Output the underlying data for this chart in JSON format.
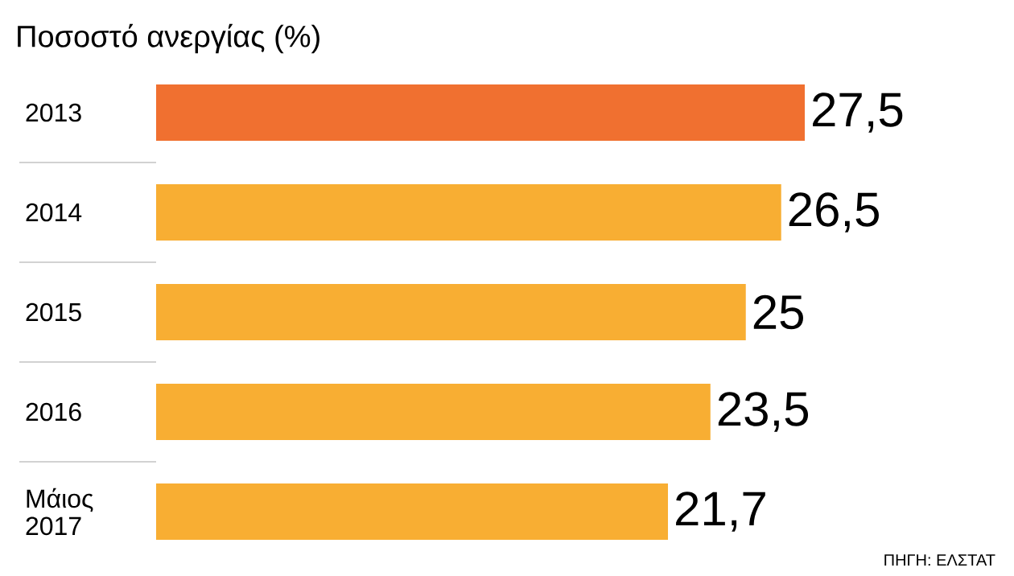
{
  "chart_data": {
    "type": "bar",
    "orientation": "horizontal",
    "title": "Ποσοστό ανεργίας (%)",
    "categories": [
      "2013",
      "2014",
      "2015",
      "2016",
      "Μάιος 2017"
    ],
    "values": [
      27.5,
      26.5,
      25,
      23.5,
      21.7
    ],
    "value_labels": [
      "27,5",
      "26,5",
      "25",
      "23,5",
      "21,7"
    ],
    "colors": [
      "#f07030",
      "#f8ae33",
      "#f8ae33",
      "#f8ae33",
      "#f8ae33"
    ],
    "annotations": [
      "ΠΗΓΗ: ΕΛΣΤΑΤ"
    ]
  }
}
